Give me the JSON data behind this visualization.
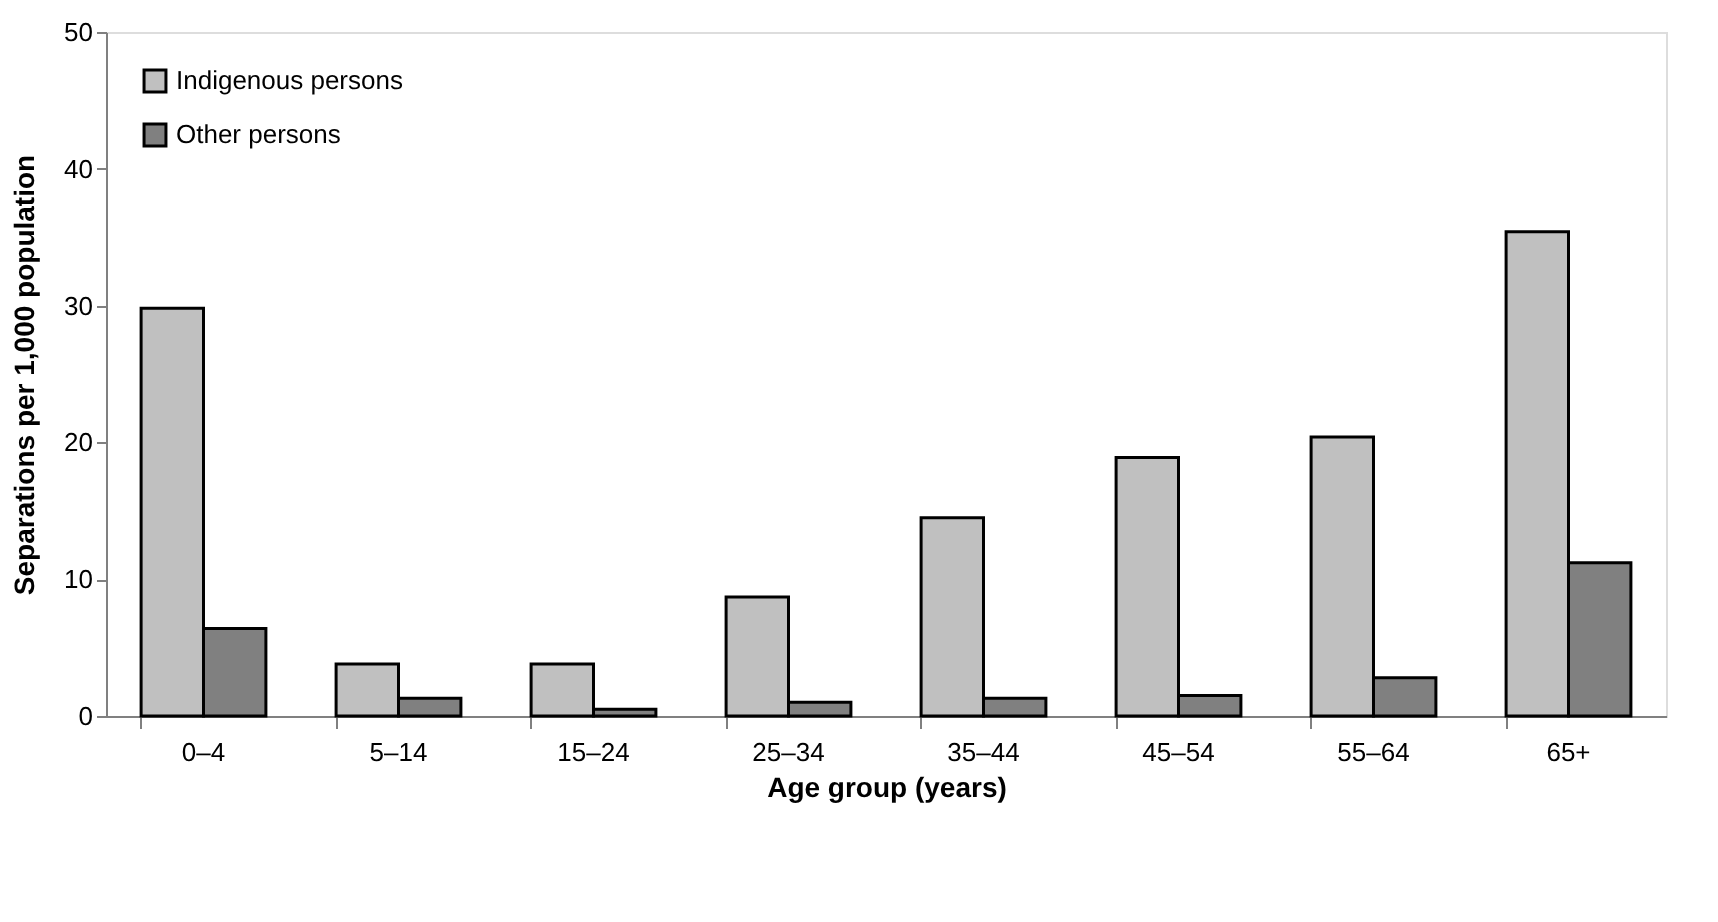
{
  "chart_data": {
    "type": "bar",
    "xlabel": "Age group (years)",
    "ylabel": "Separations per 1,000 population",
    "categories": [
      "0–4",
      "5–14",
      "15–24",
      "25–34",
      "35–44",
      "45–54",
      "55–64",
      "65+"
    ],
    "series": [
      {
        "name": "Indigenous persons",
        "color": "#c0c0c0",
        "values": [
          29.8,
          3.8,
          3.8,
          8.7,
          14.5,
          18.9,
          20.4,
          35.4
        ]
      },
      {
        "name": "Other persons",
        "color": "#808080",
        "values": [
          6.4,
          1.3,
          0.5,
          1.0,
          1.3,
          1.5,
          2.8,
          11.2
        ]
      }
    ],
    "ylim": [
      0,
      50
    ],
    "yticks": [
      0,
      10,
      20,
      30,
      40,
      50
    ],
    "grid": false,
    "legend": "top left"
  }
}
